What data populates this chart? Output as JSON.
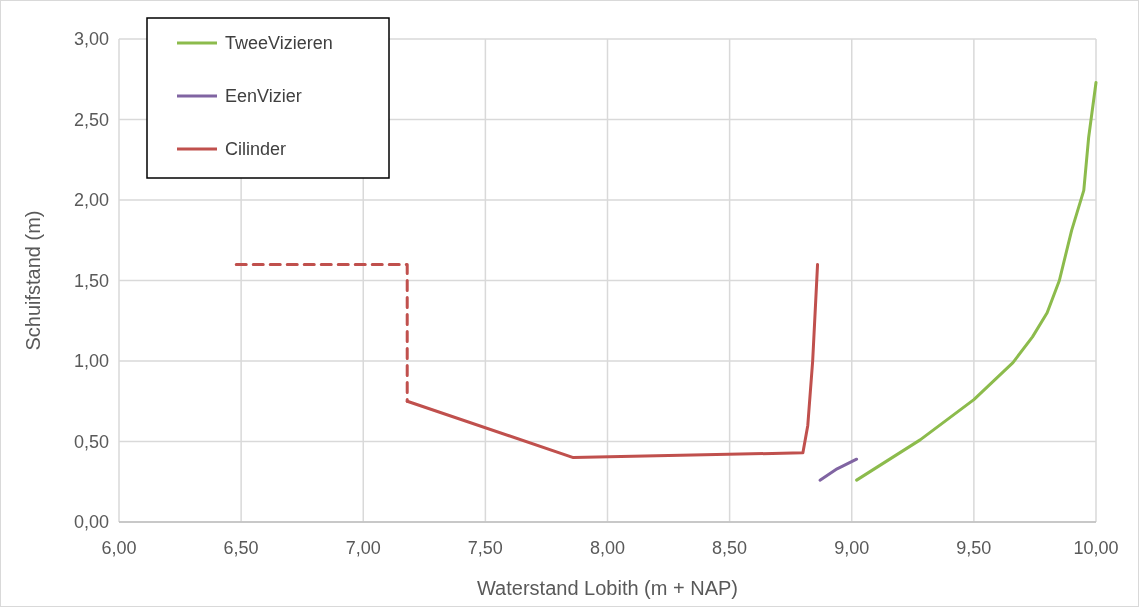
{
  "chart_data": {
    "type": "line",
    "xlabel": "Waterstand Lobith (m + NAP)",
    "ylabel": "Schuifstand (m)",
    "xlim": [
      6,
      10
    ],
    "xticks": [
      {
        "value": 6,
        "label": "6,00"
      },
      {
        "value": 6.5,
        "label": "6,50"
      },
      {
        "value": 7,
        "label": "7,00"
      },
      {
        "value": 7.5,
        "label": "7,50"
      },
      {
        "value": 8,
        "label": "8,00"
      },
      {
        "value": 8.5,
        "label": "8,50"
      },
      {
        "value": 9,
        "label": "9,00"
      },
      {
        "value": 9.5,
        "label": "9,50"
      },
      {
        "value": 10,
        "label": "10,00"
      }
    ],
    "ylim": [
      0,
      3
    ],
    "yticks": [
      {
        "value": 0,
        "label": "0,00"
      },
      {
        "value": 0.5,
        "label": "0,50"
      },
      {
        "value": 1,
        "label": "1,00"
      },
      {
        "value": 1.5,
        "label": "1,50"
      },
      {
        "value": 2,
        "label": "2,00"
      },
      {
        "value": 2.5,
        "label": "2,50"
      },
      {
        "value": 3,
        "label": "3,00"
      }
    ],
    "grid": true,
    "legend": "top left",
    "marker": "none",
    "series": [
      {
        "name": "TweeVizieren",
        "color": "#8cbb4c",
        "x": [
          9.02,
          9.28,
          9.5,
          9.66,
          9.74,
          9.8,
          9.85,
          9.9,
          9.95,
          9.97,
          10.0
        ],
        "values": [
          0.26,
          0.51,
          0.76,
          0.99,
          1.15,
          1.3,
          1.5,
          1.81,
          2.06,
          2.39,
          2.73
        ]
      },
      {
        "name": "EenVizier",
        "color": "#8064a2",
        "x": [
          8.87,
          8.94,
          9.02
        ],
        "values": [
          0.26,
          0.33,
          0.39
        ]
      },
      {
        "name": "Cilinder",
        "color": "#c0504d",
        "x": [
          7.18,
          7.86,
          8.8,
          8.82,
          8.84,
          8.86
        ],
        "values": [
          0.75,
          0.4,
          0.43,
          0.6,
          1.0,
          1.6
        ]
      },
      {
        "color": "#c0504d",
        "line_style": "dashed",
        "x": [
          6.48,
          7.18,
          7.18
        ],
        "values": [
          1.6,
          1.6,
          0.75
        ]
      }
    ]
  }
}
